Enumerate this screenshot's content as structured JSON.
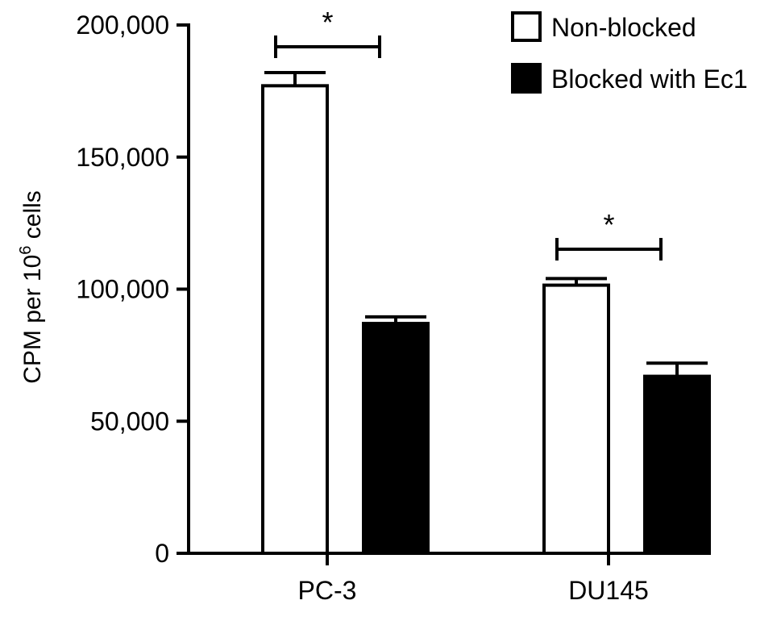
{
  "chart_data": {
    "type": "bar",
    "categories": [
      "PC-3",
      "DU145"
    ],
    "series": [
      {
        "name": "Non-blocked",
        "color": "#ffffff",
        "values": [
          177000,
          101500
        ],
        "errors": [
          5000,
          2500
        ]
      },
      {
        "name": "Blocked with Ec1",
        "color": "#000000",
        "values": [
          87000,
          67000
        ],
        "errors": [
          2500,
          5000
        ]
      }
    ],
    "ylabel": "CPM per 10",
    "ylabel_sup": "6",
    "ylabel_suffix": " cells",
    "ylim": [
      0,
      200000
    ],
    "yticks": [
      0,
      50000,
      100000,
      150000,
      200000
    ],
    "ytick_labels": [
      "0",
      "50,000",
      "100,000",
      "150,000",
      "200,000"
    ],
    "significance": [
      {
        "category": "PC-3",
        "label": "*"
      },
      {
        "category": "DU145",
        "label": "*"
      }
    ],
    "legend_position": "top-right",
    "grid": false
  }
}
